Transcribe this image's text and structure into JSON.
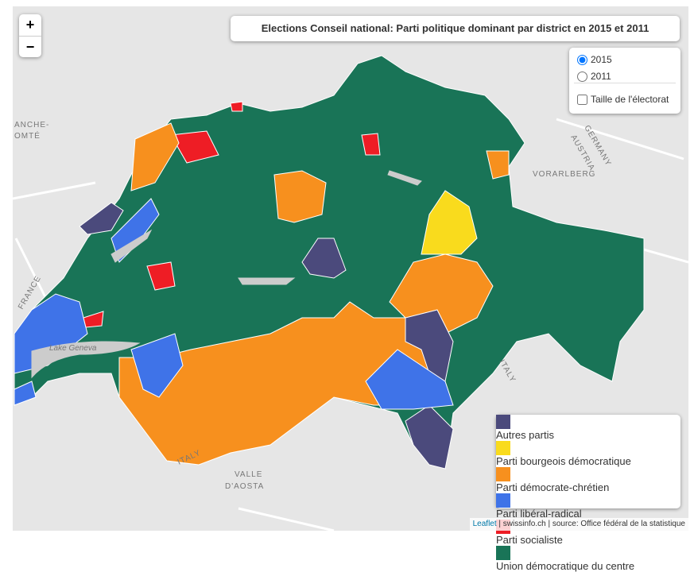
{
  "zoom": {
    "in": "+",
    "out": "−"
  },
  "title": "Elections Conseil national: Parti politique dominant par district en 2015 et 2011",
  "controls": {
    "years": [
      "2015",
      "2011"
    ],
    "selected": "2015",
    "size_toggle": "Taille de l'électorat"
  },
  "legend": [
    {
      "label": "Autres partis",
      "color": "#4b4a7c"
    },
    {
      "label": "Parti bourgeois démocratique",
      "color": "#f9db1d"
    },
    {
      "label": "Parti démocrate-chrétien",
      "color": "#f7901e"
    },
    {
      "label": "Parti libéral-radical",
      "color": "#3f73e8"
    },
    {
      "label": "Parti socialiste",
      "color": "#ee1d25"
    },
    {
      "label": "Union démocratique du centre",
      "color": "#197457"
    }
  ],
  "map_labels": [
    "ANCHE-",
    "OMTÉ",
    "GERMANY",
    "AUSTRIA",
    "VORARLBERG",
    "FRANCE",
    "Lake Geneva",
    "ITALY",
    "ITALY",
    "VALLE",
    "D'AOSTA"
  ],
  "attribution": {
    "link": "Leaflet",
    "text": "| swissinfo.ch | source: Office fédéral de la statistique"
  }
}
